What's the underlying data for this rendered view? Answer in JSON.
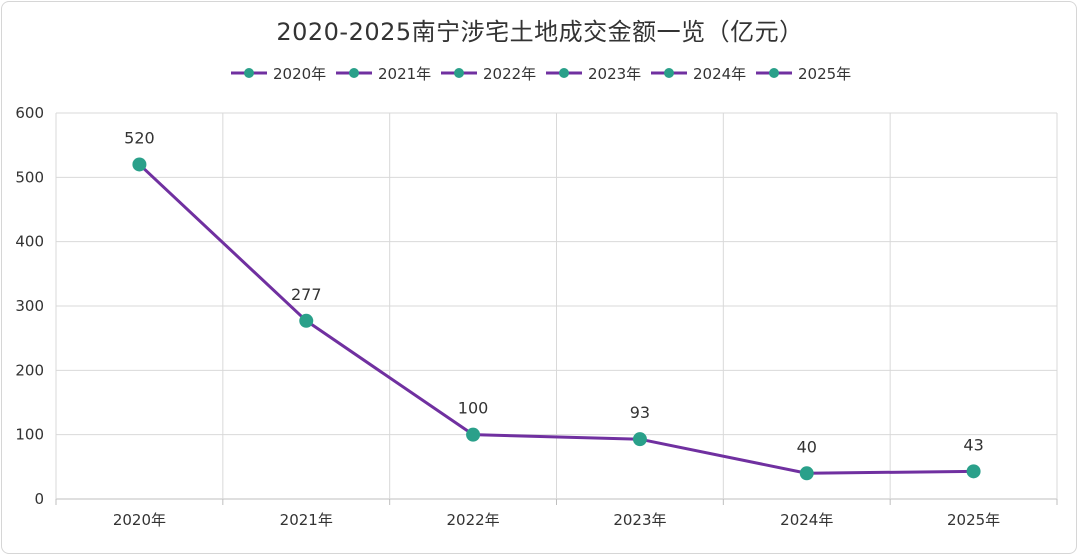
{
  "chart_data": {
    "type": "line",
    "title": "2020-2025南宁涉宅土地成交金额一览（亿元）",
    "categories": [
      "2020年",
      "2021年",
      "2022年",
      "2023年",
      "2024年",
      "2025年"
    ],
    "series": [
      {
        "values": [
          520,
          277,
          100,
          93,
          40,
          43
        ]
      }
    ],
    "legend": [
      "2020年",
      "2021年",
      "2022年",
      "2023年",
      "2024年",
      "2025年"
    ],
    "legend_position": "top",
    "ylim": [
      0,
      600
    ],
    "yticks": [
      "0",
      "100",
      "200",
      "300",
      "400",
      "500",
      "600"
    ],
    "grid": true,
    "colors": {
      "line": "#7030a0",
      "marker": "#2aa08a",
      "grid": "#d9d9d9",
      "axis": "#bfbfbf"
    }
  }
}
